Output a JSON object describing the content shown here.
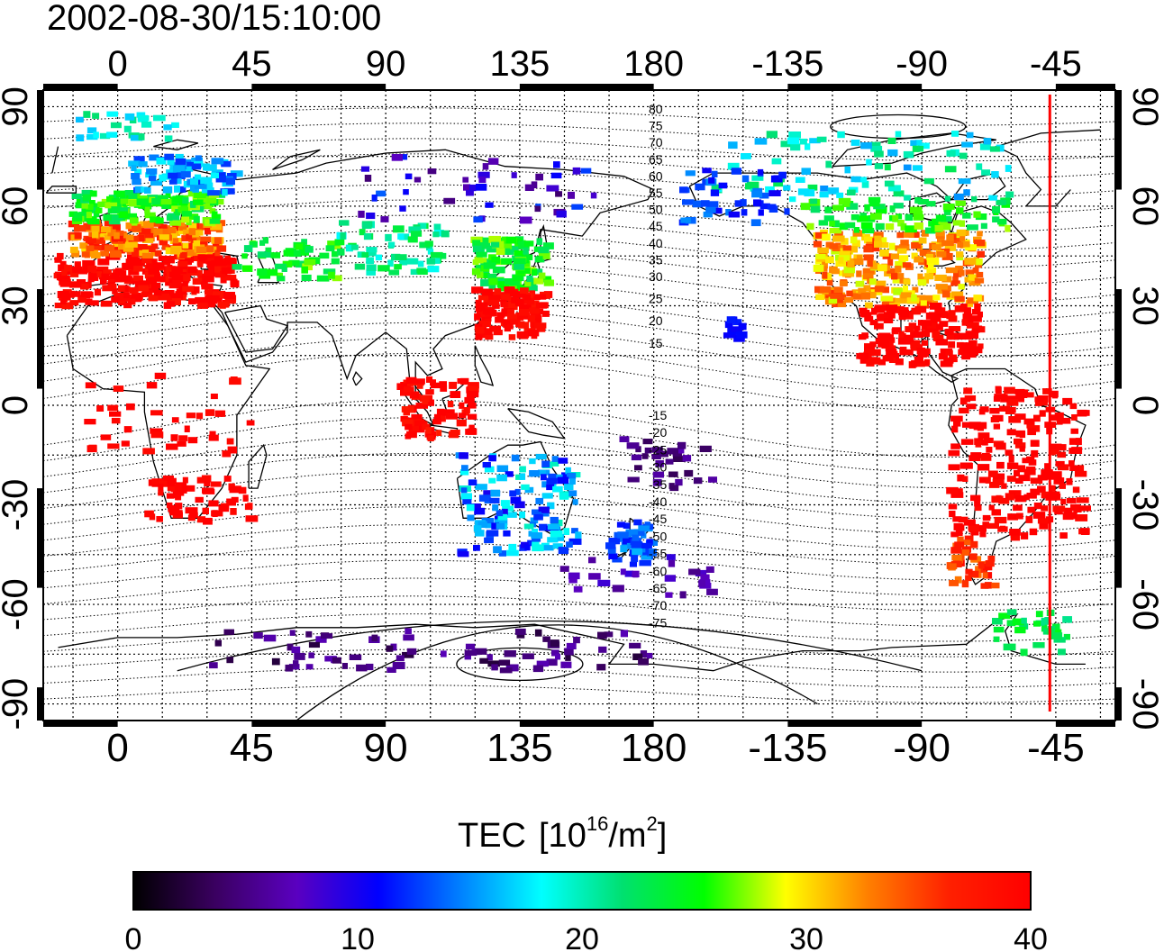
{
  "title": "2002-08-30/15:10:00",
  "map": {
    "lon_ticks": [
      "0",
      "45",
      "90",
      "135",
      "180",
      "-135",
      "-90",
      "-45"
    ],
    "lat_ticks": [
      "90",
      "60",
      "30",
      "0",
      "-30",
      "-60",
      "-90"
    ],
    "contour_labels_north": [
      "80",
      "75",
      "70",
      "65",
      "60",
      "55",
      "50",
      "45",
      "40",
      "35",
      "30",
      "25",
      "20",
      "15"
    ],
    "contour_labels_south": [
      "-15",
      "-20",
      "-25",
      "-30",
      "-35",
      "-40",
      "-45",
      "-50",
      "-55",
      "-60",
      "-65",
      "-70",
      "-75"
    ],
    "marker_line_color": "#ff0000",
    "marker_longitude": -47
  },
  "colorbar": {
    "title_prefix": "TEC",
    "title_bracket_open": "[10",
    "title_exp1": "16",
    "title_mid": "/m",
    "title_exp2": "2",
    "title_bracket_close": "]",
    "tick_labels": [
      "0",
      "10",
      "20",
      "30",
      "40"
    ],
    "min": 0,
    "max": 40,
    "colors": [
      "#000000",
      "#3a0060",
      "#5a00c0",
      "#0000ff",
      "#0080ff",
      "#00ffff",
      "#00e070",
      "#00ff00",
      "#ffff00",
      "#ff8000",
      "#ff2000",
      "#ff0000"
    ]
  }
}
